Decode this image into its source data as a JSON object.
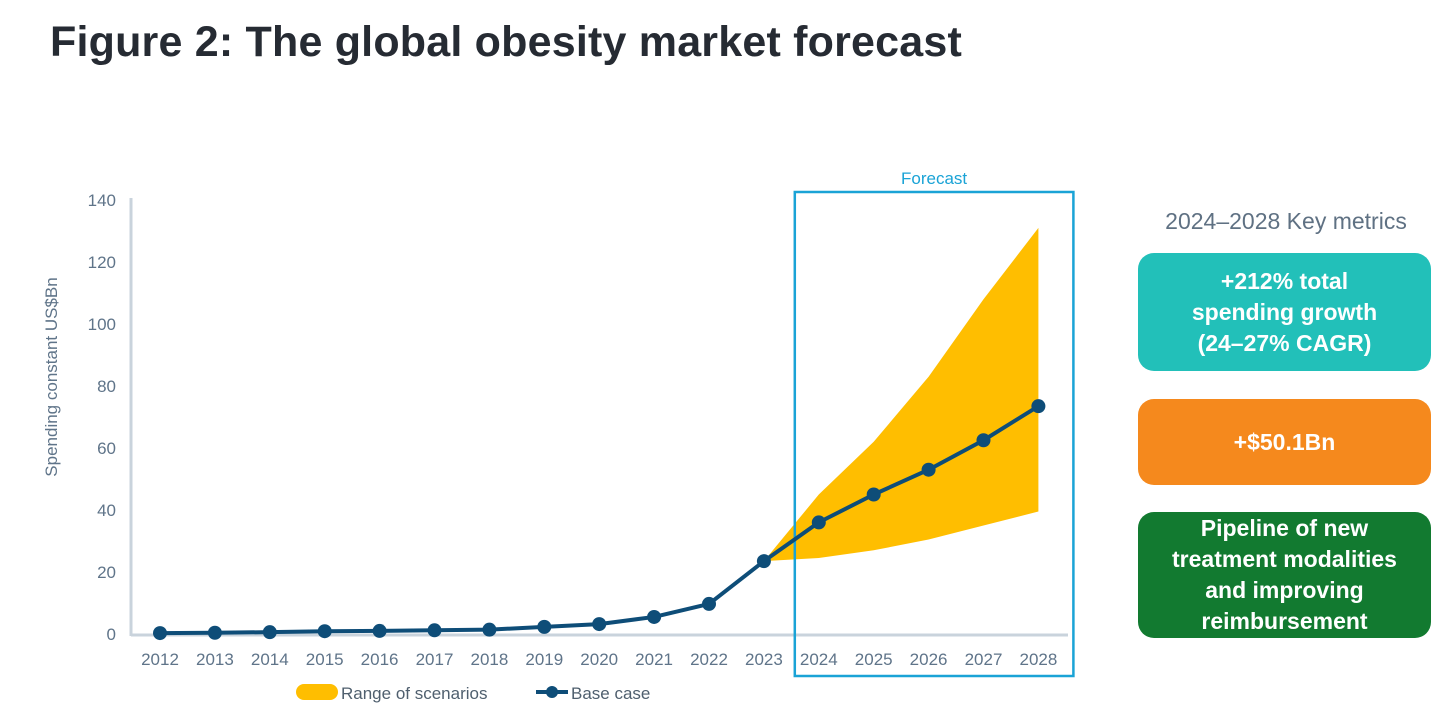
{
  "title": "Figure 2: The global obesity market forecast",
  "chart_data": {
    "type": "line",
    "title": "Figure 2: The global obesity market forecast",
    "xlabel": "",
    "ylabel": "Spending constant US$Bn",
    "ylim": [
      0,
      140
    ],
    "yticks": [
      0,
      20,
      40,
      60,
      80,
      100,
      120,
      140
    ],
    "categories": [
      "2012",
      "2013",
      "2014",
      "2015",
      "2016",
      "2017",
      "2018",
      "2019",
      "2020",
      "2021",
      "2022",
      "2023",
      "2024",
      "2025",
      "2026",
      "2027",
      "2028"
    ],
    "series": [
      {
        "name": "Base case",
        "type": "line",
        "values": [
          0.3,
          0.4,
          0.6,
          0.9,
          1.0,
          1.2,
          1.4,
          2.3,
          3.2,
          5.5,
          9.7,
          23.5,
          36.0,
          45.0,
          53.0,
          62.5,
          73.5
        ],
        "color": "#0e4d78"
      },
      {
        "name": "Range of scenarios",
        "type": "area-range",
        "x": [
          "2023",
          "2024",
          "2025",
          "2026",
          "2027",
          "2028"
        ],
        "low": [
          23.5,
          24.5,
          27.0,
          30.5,
          35.0,
          39.5
        ],
        "high": [
          23.5,
          45.0,
          62.0,
          83.0,
          108.0,
          131.0
        ],
        "color": "#ffbe00"
      }
    ],
    "annotation": {
      "label": "Forecast",
      "from": "2024",
      "to": "2028",
      "color": "#1aa3d6"
    },
    "grid": false,
    "legend_position": "bottom"
  },
  "metrics": {
    "heading": "2024–2028 Key metrics",
    "items": [
      {
        "text": "+212% total\nspending growth\n(24–27% CAGR)",
        "color": "#22c0b9"
      },
      {
        "text": "+$50.1Bn",
        "color": "#f5891d"
      },
      {
        "text": "Pipeline of new\ntreatment modalities\nand improving\nreimbursement",
        "color": "#127a30"
      }
    ]
  }
}
